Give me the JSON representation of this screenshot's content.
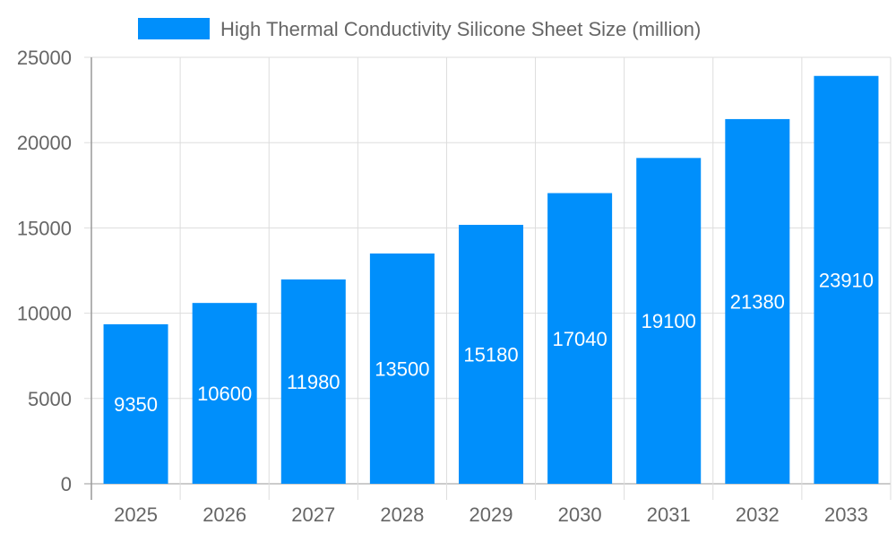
{
  "chart_data": {
    "type": "bar",
    "categories": [
      "2025",
      "2026",
      "2027",
      "2028",
      "2029",
      "2030",
      "2031",
      "2032",
      "2033"
    ],
    "series": [
      {
        "name": "High Thermal Conductivity Silicone Sheet Size (million)",
        "values": [
          9350,
          10600,
          11980,
          13500,
          15180,
          17040,
          19100,
          21380,
          23910
        ]
      }
    ],
    "ylim": [
      0,
      25000
    ],
    "yticks": [
      0,
      5000,
      10000,
      15000,
      20000,
      25000
    ],
    "grid": true,
    "legend": "top",
    "data_labels": true,
    "colors": {
      "bar": "#008ffb",
      "label": "#ffffff",
      "grid": "#dddddd",
      "axis_text": "#666666"
    }
  }
}
